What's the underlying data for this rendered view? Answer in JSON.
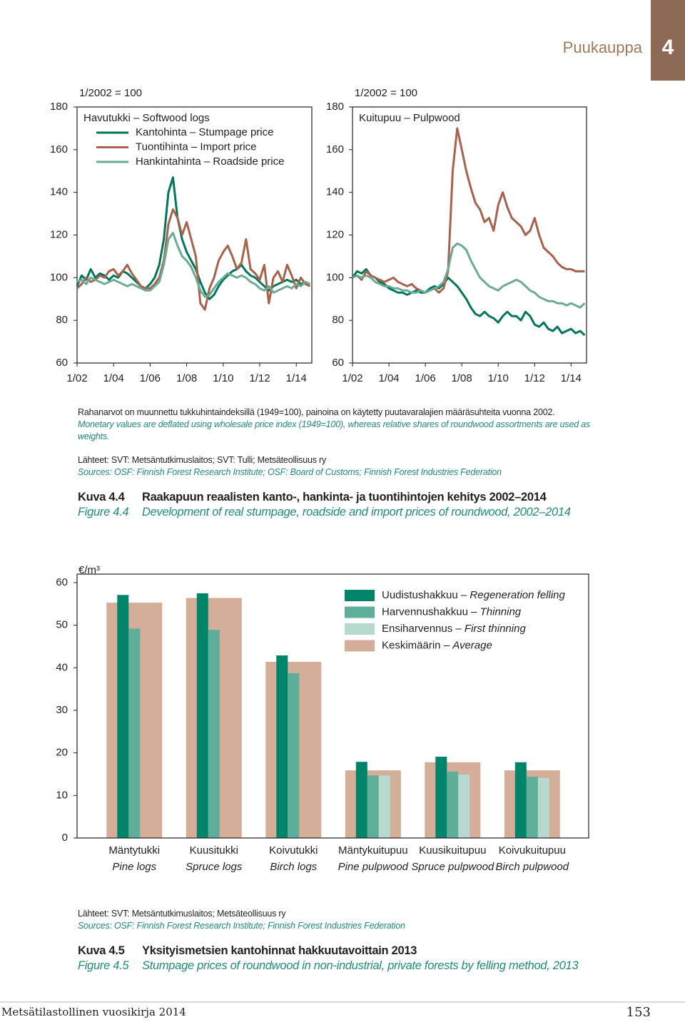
{
  "header": {
    "section": "Puukauppa",
    "chapter": "4"
  },
  "chart_data": [
    {
      "type": "line",
      "unit_label": "1/2002 = 100",
      "title": "Havutukki – Softwood logs",
      "x": [
        2002,
        2002.25,
        2002.5,
        2002.75,
        2003,
        2003.25,
        2003.5,
        2003.75,
        2004,
        2004.25,
        2004.5,
        2004.75,
        2005,
        2005.25,
        2005.5,
        2005.75,
        2006,
        2006.25,
        2006.5,
        2006.75,
        2007,
        2007.25,
        2007.5,
        2007.75,
        2008,
        2008.25,
        2008.5,
        2008.75,
        2009,
        2009.25,
        2009.5,
        2009.75,
        2010,
        2010.25,
        2010.5,
        2010.75,
        2011,
        2011.25,
        2011.5,
        2011.75,
        2012,
        2012.25,
        2012.5,
        2012.75,
        2013,
        2013.25,
        2013.5,
        2013.75,
        2014,
        2014.25,
        2014.5,
        2014.75
      ],
      "xlim": [
        2002,
        2014.85
      ],
      "ylim": [
        60,
        180
      ],
      "yticks": [
        60,
        80,
        100,
        120,
        140,
        160,
        180
      ],
      "xticks": [
        {
          "value": 2002,
          "label": "1/02"
        },
        {
          "value": 2004,
          "label": "1/04"
        },
        {
          "value": 2006,
          "label": "1/06"
        },
        {
          "value": 2008,
          "label": "1/08"
        },
        {
          "value": 2010,
          "label": "1/10"
        },
        {
          "value": 2012,
          "label": "1/12"
        },
        {
          "value": 2014,
          "label": "1/14"
        }
      ],
      "series": [
        {
          "name": "Kantohinta – Stumpage price",
          "color": "#00775a",
          "values": [
            96,
            101,
            99,
            104,
            100,
            102,
            101,
            99,
            101,
            100,
            103,
            102,
            100,
            98,
            96,
            95,
            97,
            100,
            106,
            118,
            140,
            147,
            128,
            118,
            112,
            108,
            104,
            98,
            93,
            90,
            92,
            96,
            99,
            101,
            103,
            104,
            106,
            103,
            101,
            100,
            98,
            96,
            94,
            96,
            97,
            98,
            99,
            98,
            99,
            97,
            98,
            97
          ]
        },
        {
          "name": "Tuontihinta – Import price",
          "color": "#a8614a",
          "values": [
            95,
            97,
            100,
            98,
            99,
            101,
            100,
            103,
            104,
            101,
            103,
            106,
            102,
            99,
            96,
            95,
            95,
            97,
            100,
            108,
            125,
            132,
            128,
            120,
            126,
            118,
            110,
            88,
            85,
            95,
            100,
            108,
            112,
            115,
            110,
            104,
            107,
            118,
            104,
            102,
            99,
            106,
            88,
            100,
            103,
            98,
            106,
            101,
            95,
            100,
            97,
            96
          ]
        },
        {
          "name": "Hankintahinta – Roadside price",
          "color": "#6aaa96",
          "values": [
            98,
            99,
            97,
            100,
            99,
            98,
            97,
            98,
            99,
            98,
            97,
            96,
            97,
            96,
            95,
            94,
            94,
            96,
            98,
            106,
            118,
            121,
            115,
            110,
            108,
            105,
            100,
            94,
            91,
            92,
            95,
            98,
            100,
            102,
            101,
            100,
            101,
            100,
            98,
            97,
            95,
            94,
            96,
            93,
            94,
            95,
            96,
            95,
            97,
            96,
            98,
            97
          ]
        }
      ]
    },
    {
      "type": "line",
      "unit_label": "1/2002 = 100",
      "title": "Kuitupuu – Pulpwood",
      "x": [
        2002,
        2002.25,
        2002.5,
        2002.75,
        2003,
        2003.25,
        2003.5,
        2003.75,
        2004,
        2004.25,
        2004.5,
        2004.75,
        2005,
        2005.25,
        2005.5,
        2005.75,
        2006,
        2006.25,
        2006.5,
        2006.75,
        2007,
        2007.25,
        2007.5,
        2007.75,
        2008,
        2008.25,
        2008.5,
        2008.75,
        2009,
        2009.25,
        2009.5,
        2009.75,
        2010,
        2010.25,
        2010.5,
        2010.75,
        2011,
        2011.25,
        2011.5,
        2011.75,
        2012,
        2012.25,
        2012.5,
        2012.75,
        2013,
        2013.25,
        2013.5,
        2013.75,
        2014,
        2014.25,
        2014.5,
        2014.75
      ],
      "xlim": [
        2002,
        2014.85
      ],
      "ylim": [
        60,
        180
      ],
      "yticks": [
        60,
        80,
        100,
        120,
        140,
        160,
        180
      ],
      "xticks": [
        {
          "value": 2002,
          "label": "1/02"
        },
        {
          "value": 2004,
          "label": "1/04"
        },
        {
          "value": 2006,
          "label": "1/06"
        },
        {
          "value": 2008,
          "label": "1/08"
        },
        {
          "value": 2010,
          "label": "1/10"
        },
        {
          "value": 2012,
          "label": "1/12"
        },
        {
          "value": 2014,
          "label": "1/14"
        }
      ],
      "series": [
        {
          "color": "#00775a",
          "values": [
            100,
            103,
            102,
            104,
            101,
            100,
            98,
            97,
            95,
            94,
            93,
            93,
            92,
            93,
            94,
            93,
            93,
            95,
            96,
            95,
            97,
            100,
            98,
            96,
            93,
            90,
            86,
            83,
            82,
            84,
            82,
            81,
            79,
            82,
            84,
            82,
            82,
            80,
            84,
            82,
            78,
            77,
            79,
            76,
            75,
            77,
            74,
            75,
            76,
            74,
            75,
            73
          ]
        },
        {
          "color": "#a8614a",
          "values": [
            100,
            101,
            99,
            103,
            101,
            100,
            99,
            98,
            99,
            100,
            98,
            97,
            96,
            97,
            95,
            94,
            93,
            94,
            95,
            93,
            95,
            103,
            150,
            170,
            160,
            150,
            142,
            135,
            132,
            126,
            128,
            122,
            134,
            140,
            133,
            128,
            126,
            124,
            120,
            122,
            128,
            120,
            114,
            112,
            110,
            107,
            105,
            104,
            104,
            103,
            103,
            103
          ]
        },
        {
          "color": "#6aaa96",
          "values": [
            100,
            101,
            100,
            101,
            100,
            98,
            97,
            96,
            96,
            95,
            95,
            94,
            94,
            93,
            93,
            94,
            93,
            94,
            95,
            96,
            98,
            104,
            114,
            116,
            115,
            113,
            108,
            104,
            100,
            98,
            96,
            95,
            94,
            96,
            97,
            98,
            99,
            98,
            96,
            94,
            93,
            91,
            90,
            89,
            89,
            88,
            88,
            87,
            88,
            87,
            86,
            88
          ]
        }
      ]
    },
    {
      "type": "bar",
      "unit_label": "€/m³",
      "categories": [
        "Mäntytukki",
        "Kuusitukki",
        "Koivutukki",
        "Mäntykuitupuu",
        "Kuusikuitupuu",
        "Koivukuitupuu"
      ],
      "categories_en": [
        "Pine logs",
        "Spruce logs",
        "Birch logs",
        "Pine pulpwood",
        "Spruce pulpwood",
        "Birch pulpwood"
      ],
      "ylim": [
        0,
        62
      ],
      "yticks": [
        0,
        10,
        20,
        30,
        40,
        50,
        60
      ],
      "series": [
        {
          "name": "Uudistushakkuu",
          "name_en": "Regeneration felling",
          "color": "#00846a",
          "values": [
            57.1,
            57.5,
            42.9,
            17.9,
            19.1,
            17.8
          ]
        },
        {
          "name": "Harvennushakkuu",
          "name_en": "Thinning",
          "color": "#5fae99",
          "values": [
            49.2,
            48.9,
            38.7,
            14.7,
            15.6,
            14.4
          ]
        },
        {
          "name": "Ensiharvennus",
          "name_en": "First thinning",
          "color": "#b6dad0",
          "values": [
            null,
            null,
            null,
            14.7,
            14.9,
            14.1
          ]
        },
        {
          "name": "Keskimäärin",
          "name_en": "Average",
          "color": "#d5ae99",
          "values": [
            55.3,
            56.4,
            41.4,
            15.9,
            17.8,
            15.9
          ]
        }
      ]
    }
  ],
  "figure_4_4": {
    "note_fi": "Rahanarvot on muunnettu tukkuhintaindeksillä (1949=100), painoina on käytetty puutavaralajien määräsuhteita vuonna 2002.",
    "note_en": "Monetary values are deflated using wholesale price index (1949=100), whereas relative shares of roundwood assortments are used as weights.",
    "sources_fi": "Lähteet: SVT: Metsäntutkimuslaitos; SVT: Tulli; Metsäteollisuus ry",
    "sources_en": "Sources: OSF: Finnish Forest Research Institute; OSF: Board of Customs; Finnish Forest Industries Federation",
    "caption_fi": {
      "label": "Kuva 4.4",
      "title": "Raakapuun reaalisten kanto-, hankinta- ja tuontihintojen kehitys 2002–2014"
    },
    "caption_en": {
      "label": "Figure 4.4",
      "title": "Development of real stumpage, roadside and import prices of roundwood, 2002–2014"
    }
  },
  "figure_4_5": {
    "sources_fi": "Lähteet: SVT: Metsäntutkimuslaitos; Metsäteollisuus ry",
    "sources_en": "Sources: OSF: Finnish Forest Research Institute; Finnish Forest Industries Federation",
    "caption_fi": {
      "label": "Kuva 4.5",
      "title": "Yksityismetsien kantohinnat hakkuutavoittain 2013"
    },
    "caption_en": {
      "label": "Figure 4.5",
      "title": "Stumpage prices of roundwood in non-industrial, private forests by felling method, 2013"
    }
  },
  "footer": {
    "publication": "Metsätilastollinen vuosikirja 2014",
    "page": "153"
  }
}
